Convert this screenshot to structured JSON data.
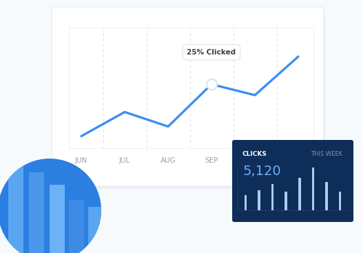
{
  "chart_data": [
    {
      "type": "line",
      "categories": [
        "JUN",
        "JUL",
        "AUG",
        "SEP",
        null,
        null
      ],
      "values": [
        10,
        30,
        18,
        53,
        44,
        76
      ],
      "color": "#3d8ff0",
      "ylim": [
        0,
        100
      ],
      "yticks": [],
      "grid": true,
      "tick_labels": "x",
      "annotations": [
        {
          "category": "SEP",
          "text": "25% Clicked"
        }
      ]
    },
    {
      "type": "bar",
      "title": "CLICKS",
      "subtitle": "THIS WEEK",
      "total": {
        "value": 5120,
        "label": "5,120"
      },
      "categories": [
        null,
        null,
        null,
        null,
        null,
        null,
        null,
        null
      ],
      "values": [
        20,
        27,
        35,
        25,
        43,
        57,
        38,
        25
      ],
      "color": "#a9cdf5",
      "ylim": [
        0,
        60
      ],
      "yticks": [],
      "tick_labels": false
    }
  ]
}
